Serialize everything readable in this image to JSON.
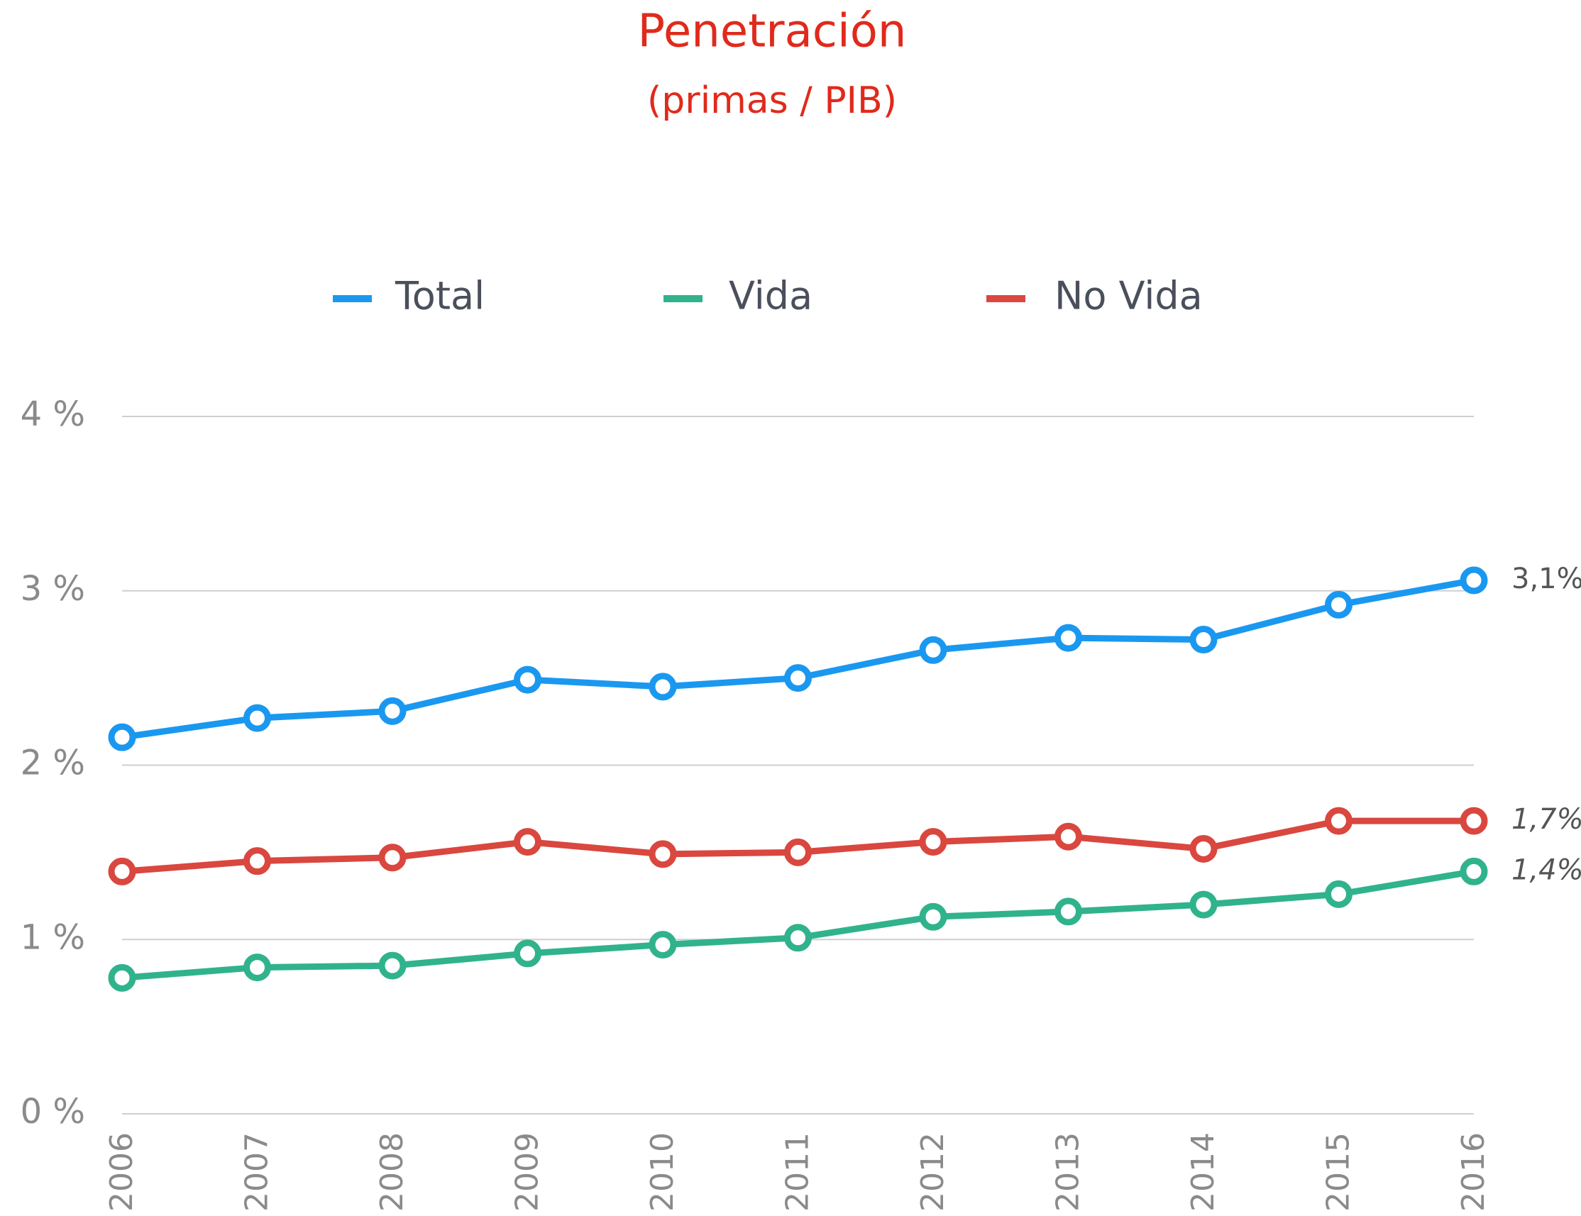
{
  "chart_data": {
    "type": "line",
    "title": "Penetración",
    "subtitle": "(primas / PIB)",
    "categories": [
      "2006",
      "2007",
      "2008",
      "2009",
      "2010",
      "2011",
      "2012",
      "2013",
      "2014",
      "2015",
      "2016"
    ],
    "series": [
      {
        "name": "Total",
        "color": "#1a98f0",
        "values": [
          2.16,
          2.27,
          2.31,
          2.49,
          2.45,
          2.5,
          2.66,
          2.73,
          2.72,
          2.92,
          3.06
        ],
        "value_labels": [
          null,
          null,
          null,
          null,
          null,
          null,
          null,
          null,
          null,
          null,
          "3,1%"
        ]
      },
      {
        "name": "Vida",
        "color": "#30b38c",
        "values": [
          0.78,
          0.84,
          0.85,
          0.92,
          0.97,
          1.01,
          1.13,
          1.16,
          1.2,
          1.26,
          1.39
        ],
        "value_labels": [
          null,
          null,
          null,
          null,
          null,
          null,
          null,
          null,
          null,
          null,
          "1,4%"
        ]
      },
      {
        "name": "No Vida",
        "color": "#d9473f",
        "values": [
          1.39,
          1.45,
          1.47,
          1.56,
          1.49,
          1.5,
          1.56,
          1.59,
          1.52,
          1.68,
          1.68
        ],
        "value_labels": [
          null,
          null,
          null,
          null,
          null,
          null,
          null,
          null,
          null,
          null,
          "1,7%"
        ]
      }
    ],
    "ylim": [
      0,
      4
    ],
    "yticks": [
      {
        "value": 0,
        "label": "0 %"
      },
      {
        "value": 1,
        "label": "1 %"
      },
      {
        "value": 2,
        "label": "2 %"
      },
      {
        "value": 3,
        "label": "3 %"
      },
      {
        "value": 4,
        "label": "4 %"
      }
    ],
    "grid": true,
    "legend": "top"
  }
}
